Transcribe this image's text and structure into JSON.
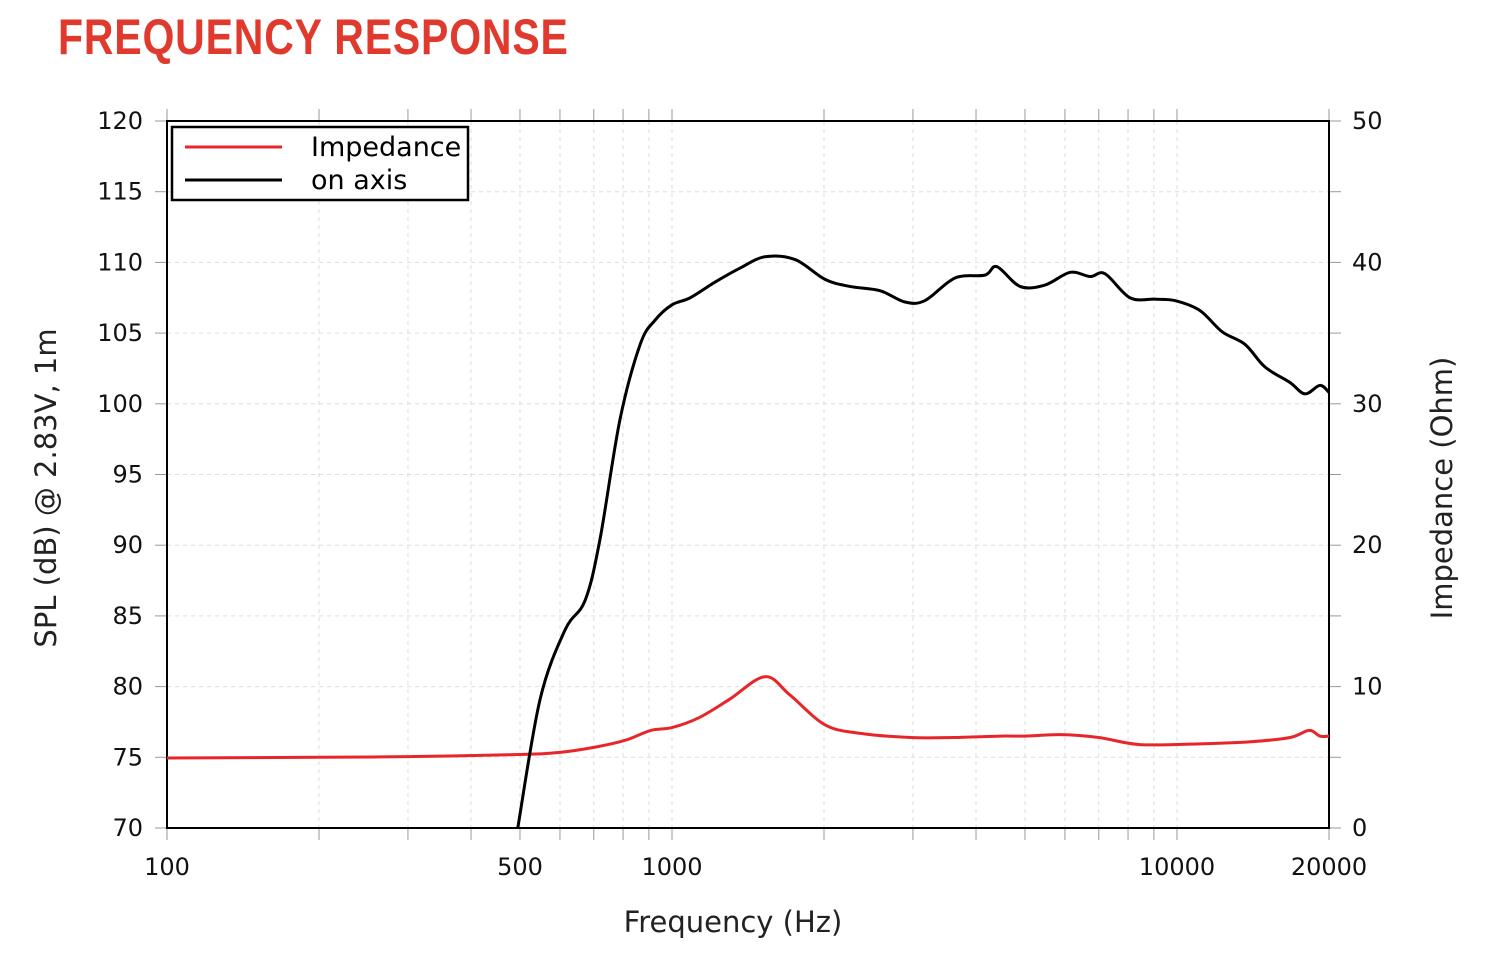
{
  "title": "FREQUENCY RESPONSE",
  "chart_data": {
    "type": "line",
    "title": "FREQUENCY RESPONSE",
    "xlabel": "Frequency (Hz)",
    "ylabel": "SPL (dB) @ 2.83V, 1m",
    "y2label": "Impedance (Ohm)",
    "xscale": "log",
    "xlim": [
      100,
      20000
    ],
    "ylim": [
      70,
      120
    ],
    "y2lim": [
      0,
      50
    ],
    "xticks": [
      100,
      500,
      1000,
      10000,
      20000
    ],
    "xtick_labels": [
      "100",
      "500",
      "1000",
      "10000",
      "20000"
    ],
    "yticks": [
      "120",
      "115",
      "110",
      "105",
      "100",
      "95",
      "90",
      "85",
      "80",
      "75",
      "70"
    ],
    "y2ticks": [
      "50",
      "40",
      "30",
      "20",
      "10",
      "0"
    ],
    "grid": true,
    "legend": {
      "placement": "top-left",
      "entries": [
        "Impedance",
        "on axis"
      ]
    },
    "series": [
      {
        "name": "Impedance",
        "axis": "right",
        "color": "#e8262a",
        "x": [
          100,
          200,
          300,
          500,
          600,
          700,
          807,
          908,
          1000,
          1131,
          1300,
          1528,
          1713,
          2009,
          2353,
          2960,
          3600,
          4470,
          5000,
          5870,
          7000,
          8440,
          11100,
          14000,
          16750,
          18270,
          19190,
          20000
        ],
        "y": [
          4.95,
          5.0,
          5.05,
          5.2,
          5.35,
          5.7,
          6.2,
          6.9,
          7.1,
          7.8,
          9.1,
          10.7,
          9.4,
          7.3,
          6.7,
          6.4,
          6.4,
          6.5,
          6.5,
          6.6,
          6.4,
          5.9,
          5.95,
          6.1,
          6.4,
          6.9,
          6.5,
          6.5
        ]
      },
      {
        "name": "on axis",
        "axis": "left",
        "color": "#000000",
        "x": [
          495,
          548,
          614,
          673,
          720,
          789,
          865,
          925,
          1000,
          1087,
          1216,
          1364,
          1528,
          1753,
          2009,
          2250,
          2581,
          2893,
          3170,
          3634,
          4165,
          4400,
          4890,
          5480,
          6143,
          6730,
          7200,
          8070,
          9040,
          9900,
          11100,
          12280,
          13640,
          14940,
          16750,
          17920,
          19190,
          20000
        ],
        "y": [
          70,
          79.1,
          84,
          86.1,
          90.4,
          98.9,
          104.2,
          105.9,
          107,
          107.5,
          108.6,
          109.6,
          110.4,
          110.2,
          108.8,
          108.3,
          108,
          107.2,
          107.3,
          108.9,
          109.1,
          109.7,
          108.3,
          108.4,
          109.3,
          109,
          109.2,
          107.5,
          107.4,
          107.3,
          106.6,
          105.1,
          104.2,
          102.6,
          101.5,
          100.7,
          101.3,
          100.8
        ]
      }
    ]
  }
}
